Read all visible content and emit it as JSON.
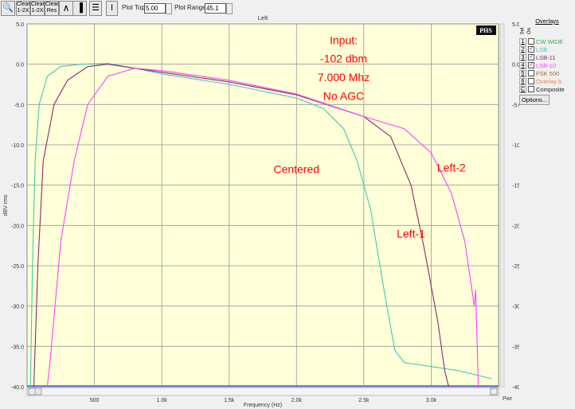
{
  "toolbar": {
    "zoom_icon": "magnifier-icon",
    "buttons": [
      "Clear 1-2X",
      "Clear 1-2X",
      "Clear Res"
    ],
    "plot_top_label": "Plot Top:",
    "plot_top_value": "5.00",
    "plot_range_label": "Plot Range:",
    "plot_range_value": "45.1"
  },
  "overlays": {
    "title": "Overlays",
    "col_sel": "Sel",
    "col_on": "On",
    "items": [
      {
        "num": "1",
        "label": "CW WIDE",
        "checked": false,
        "color": "#3aa84a"
      },
      {
        "num": "2",
        "label": "LSB",
        "checked": true,
        "color": "#40c8b8"
      },
      {
        "num": "3",
        "label": "LSB-11",
        "checked": true,
        "color": "#8b2a6e"
      },
      {
        "num": "4",
        "label": "LSB-10",
        "checked": true,
        "color": "#ff40ff"
      },
      {
        "num": "5",
        "label": "FSK 500",
        "checked": false,
        "color": "#9a6a3a"
      },
      {
        "num": "6",
        "label": "Overlay 6",
        "checked": false,
        "color": "#ff8040"
      },
      {
        "num": "C",
        "label": "Composite",
        "checked": false,
        "color": "#222222"
      }
    ],
    "options_label": "Options..."
  },
  "chart_data": {
    "type": "line",
    "title": "Left",
    "xlabel": "Frequency (Hz)",
    "ylabel": "dBV rms",
    "right_label": "Pwr",
    "logo": "PHS",
    "xlim": [
      0,
      3500
    ],
    "ylim": [
      -40,
      5
    ],
    "grid": true,
    "xticks": [
      {
        "v": 500,
        "t": "500"
      },
      {
        "v": 1000,
        "t": "1.0k"
      },
      {
        "v": 1500,
        "t": "1.5k"
      },
      {
        "v": 2000,
        "t": "2.0k"
      },
      {
        "v": 2500,
        "t": "2.5k"
      },
      {
        "v": 3000,
        "t": "3.0k"
      }
    ],
    "yticks": [
      {
        "v": 5,
        "t": "5.0"
      },
      {
        "v": 0,
        "t": "0.0"
      },
      {
        "v": -5,
        "t": "-5.0"
      },
      {
        "v": -10,
        "t": "-10.0"
      },
      {
        "v": -15,
        "t": "-15.0"
      },
      {
        "v": -20,
        "t": "-20.0"
      },
      {
        "v": -25,
        "t": "-25.0"
      },
      {
        "v": -30,
        "t": "-30.0"
      },
      {
        "v": -35,
        "t": "-35.0"
      },
      {
        "v": -40,
        "t": "-40.0"
      }
    ],
    "annotations": [
      {
        "text": "Input:",
        "x": 2350,
        "y": 2.5
      },
      {
        "text": "-102 dbm",
        "x": 2350,
        "y": 0.2
      },
      {
        "text": "7.000 Mhz",
        "x": 2350,
        "y": -2.1
      },
      {
        "text": "No AGC",
        "x": 2350,
        "y": -4.4
      },
      {
        "text": "Centered",
        "x": 2000,
        "y": -13.5
      },
      {
        "text": "Left-1",
        "x": 2850,
        "y": -21.5
      },
      {
        "text": "Left-2",
        "x": 3150,
        "y": -13.3
      }
    ],
    "series": [
      {
        "name": "LSB",
        "color": "#40c8b8",
        "x": [
          25,
          40,
          60,
          90,
          150,
          250,
          400,
          600,
          800,
          1000,
          1500,
          2000,
          2200,
          2350,
          2450,
          2550,
          2650,
          2730,
          2800,
          3000,
          3200,
          3450
        ],
        "y": [
          -40,
          -25,
          -12,
          -5,
          -1.5,
          -0.3,
          0,
          0.1,
          -0.5,
          -1.2,
          -2.5,
          -4.2,
          -5.5,
          -8,
          -12,
          -18,
          -28,
          -35.5,
          -37,
          -37.5,
          -38,
          -39
        ]
      },
      {
        "name": "LSB-11",
        "color": "#8b2a6e",
        "x": [
          50,
          80,
          120,
          200,
          300,
          450,
          600,
          1000,
          1500,
          2000,
          2500,
          2700,
          2850,
          2950,
          3050,
          3100,
          3130
        ],
        "y": [
          -40,
          -25,
          -12,
          -5,
          -2,
          -0.3,
          0,
          -1,
          -2.2,
          -3.8,
          -6.5,
          -9,
          -15,
          -23,
          -32,
          -38,
          -40
        ]
      },
      {
        "name": "LSB-10",
        "color": "#ff40ff",
        "x": [
          150,
          170,
          250,
          350,
          450,
          600,
          800,
          1000,
          1500,
          2000,
          2500,
          2800,
          3000,
          3150,
          3250,
          3320,
          3330,
          3350
        ],
        "y": [
          -40,
          -37,
          -22,
          -12,
          -5,
          -1.5,
          -0.5,
          -0.8,
          -2,
          -3.7,
          -6.5,
          -8,
          -11,
          -16,
          -22,
          -30,
          -28,
          -40
        ]
      }
    ]
  }
}
